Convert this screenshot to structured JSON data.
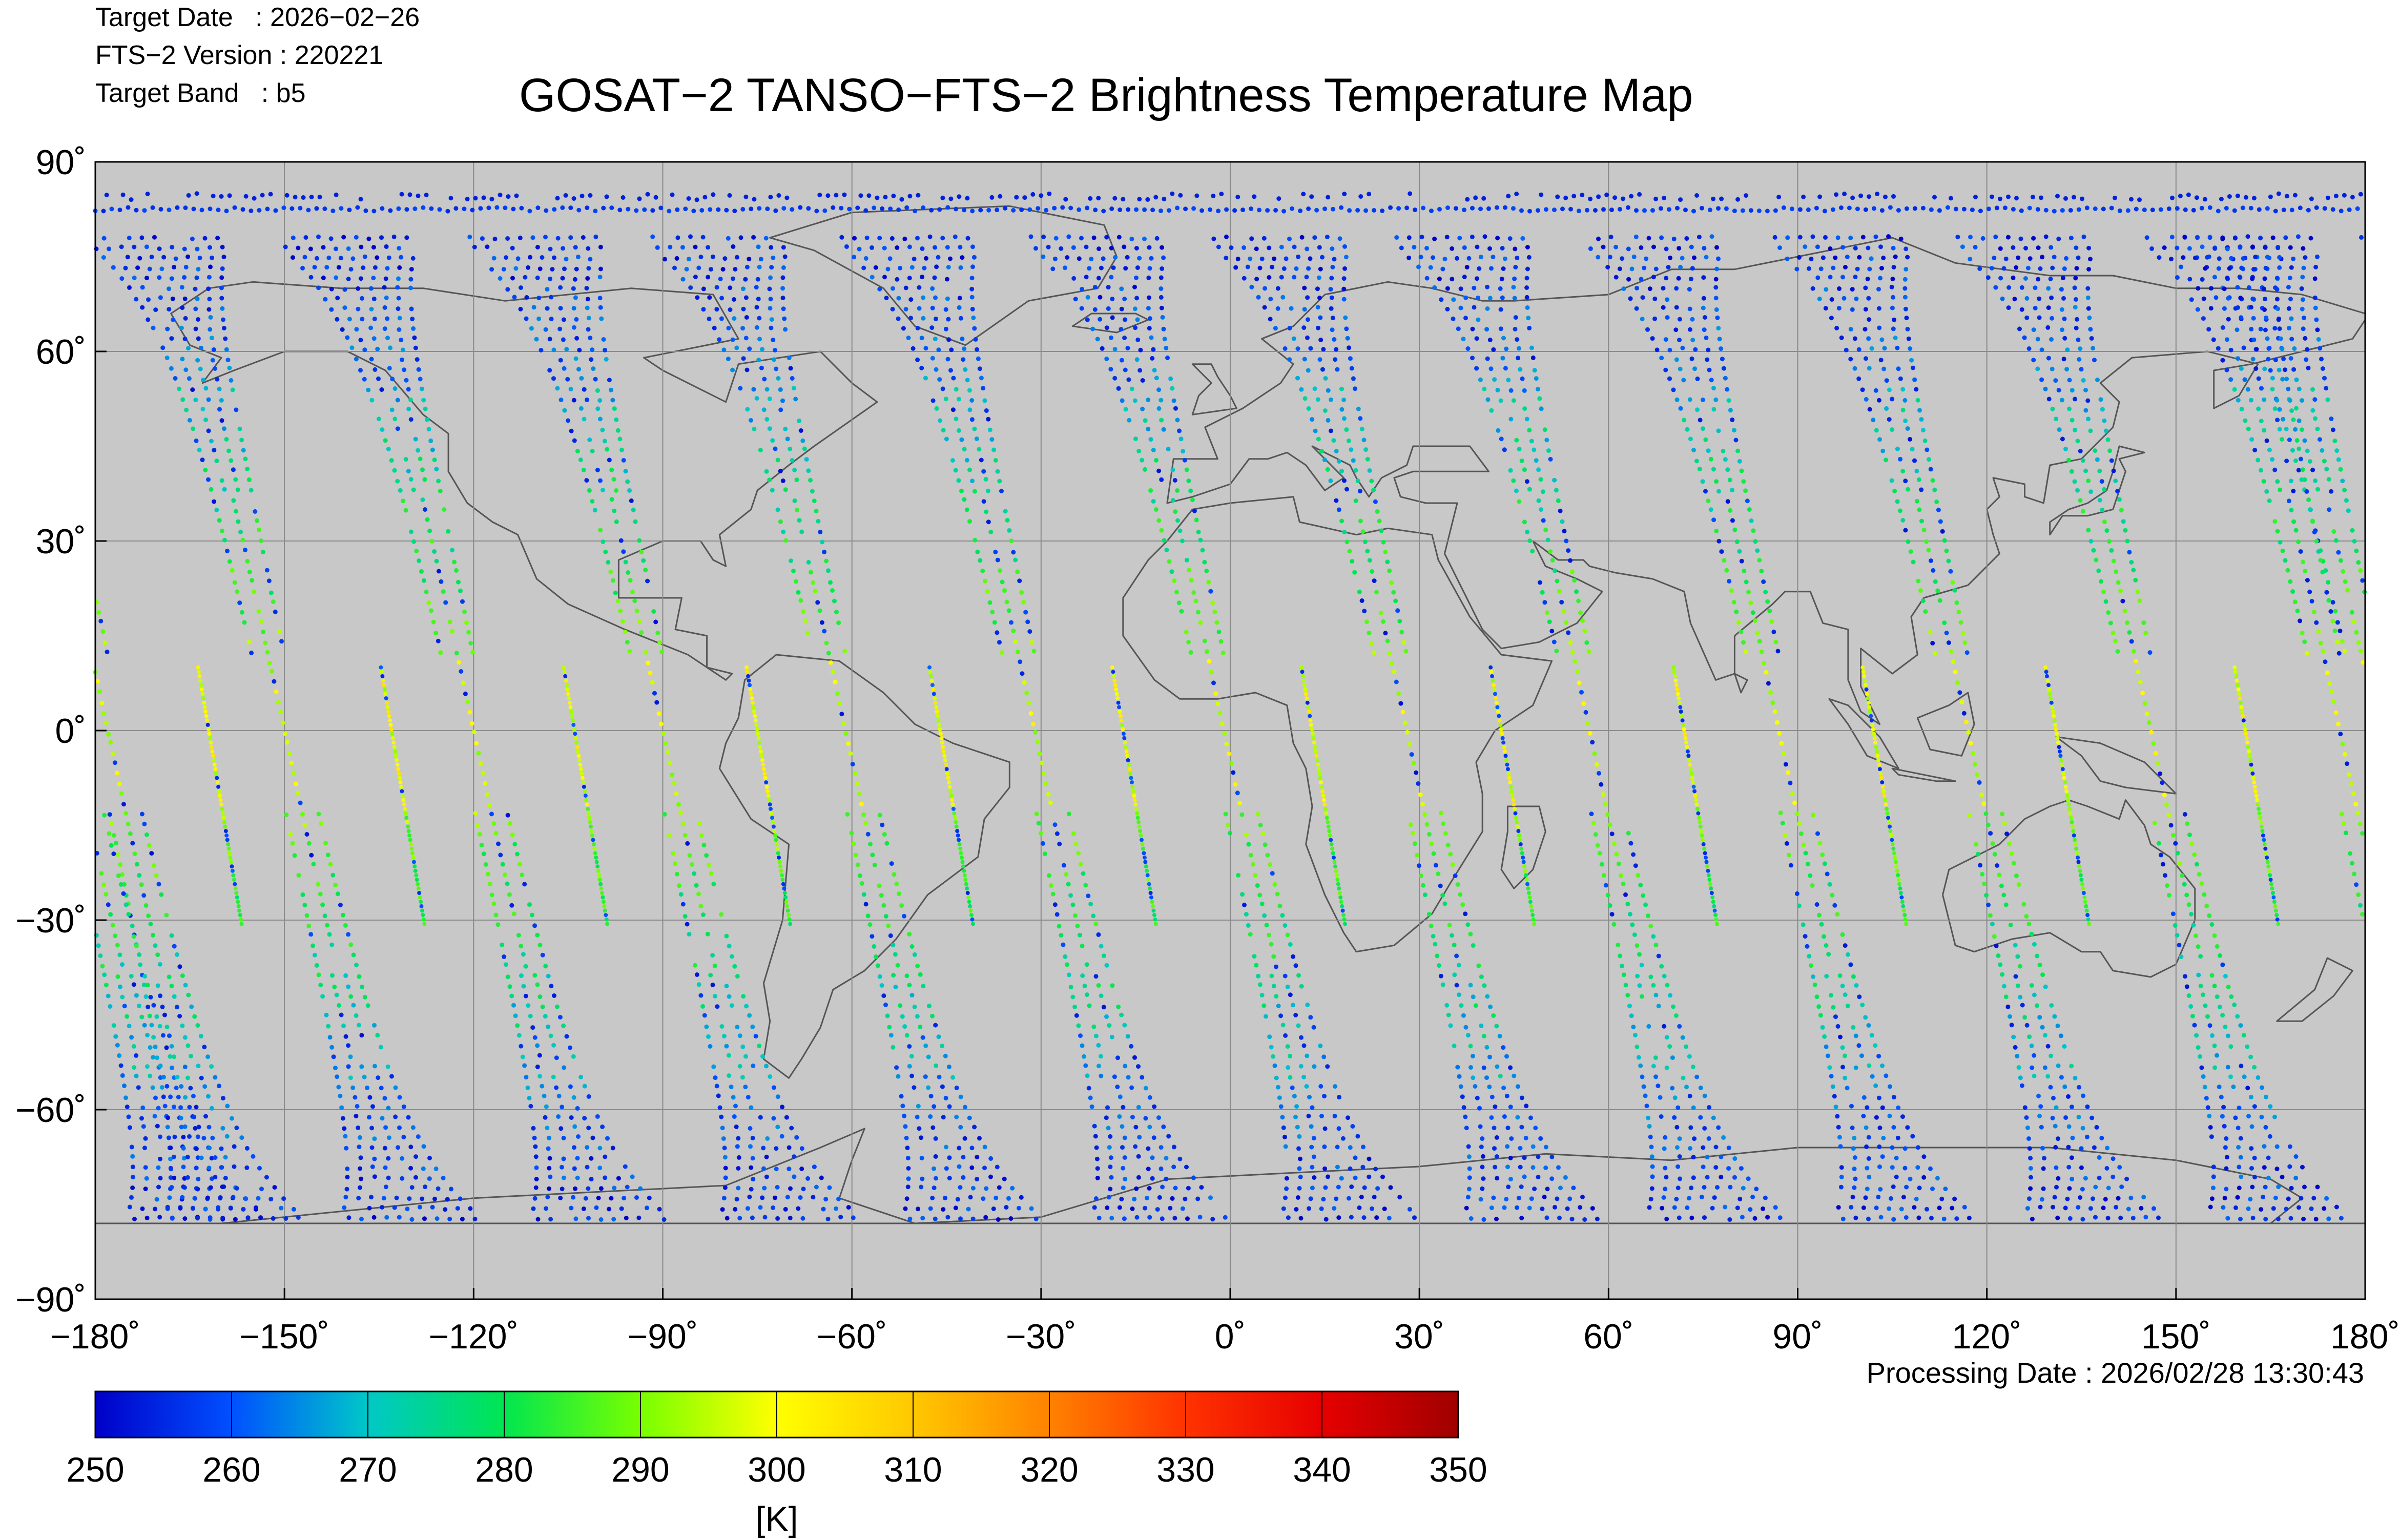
{
  "header": {
    "target_date": "Target Date   : 2026−02−26",
    "version": "FTS−2 Version : 220221",
    "target_band": "Target Band   : b5"
  },
  "title": "GOSAT−2 TANSO−FTS−2 Brightness Temperature Map",
  "processing_date": "Processing Date : 2026/02/28 13:30:43",
  "map": {
    "projection": "equirectangular",
    "lon_range": [
      -180,
      180
    ],
    "lat_range": [
      -90,
      90
    ],
    "background_color": "#c8c8c8",
    "grid_color": "#8a8a8a",
    "lon_ticks": [
      {
        "value": -180,
        "label": "−180˚"
      },
      {
        "value": -150,
        "label": "−150˚"
      },
      {
        "value": -120,
        "label": "−120˚"
      },
      {
        "value": -90,
        "label": "−90˚"
      },
      {
        "value": -60,
        "label": "−60˚"
      },
      {
        "value": -30,
        "label": "−30˚"
      },
      {
        "value": 0,
        "label": "0˚"
      },
      {
        "value": 30,
        "label": "30˚"
      },
      {
        "value": 60,
        "label": "60˚"
      },
      {
        "value": 90,
        "label": "90˚"
      },
      {
        "value": 120,
        "label": "120˚"
      },
      {
        "value": 150,
        "label": "150˚"
      },
      {
        "value": 180,
        "label": "180˚"
      }
    ],
    "lat_ticks": [
      {
        "value": 90,
        "label": "90˚"
      },
      {
        "value": 60,
        "label": "60˚"
      },
      {
        "value": 30,
        "label": "30˚"
      },
      {
        "value": 0,
        "label": "0˚"
      },
      {
        "value": -30,
        "label": "−30˚"
      },
      {
        "value": -60,
        "label": "−60˚"
      },
      {
        "value": -90,
        "label": "−90˚"
      }
    ],
    "northern_polar_track": {
      "lat": 82.5,
      "temperature_k": 255
    },
    "ascending_tracks_equator_lon": [
      -178,
      -150,
      -120,
      -90,
      -61,
      -31,
      -1,
      28,
      57,
      87,
      117,
      146,
      176
    ],
    "descending_tracks_equator_lon": [
      -162,
      -133,
      -104,
      -75,
      -46,
      -17,
      13,
      43,
      72,
      102,
      131,
      161
    ],
    "land_outline_color": "#555555"
  },
  "colorbar": {
    "min": 250,
    "max": 350,
    "ticks": [
      "250",
      "260",
      "270",
      "280",
      "290",
      "300",
      "310",
      "320",
      "330",
      "340",
      "350"
    ],
    "unit": "[K]",
    "colors": [
      "#0000c8",
      "#0050ff",
      "#00c8c8",
      "#00e650",
      "#78ff00",
      "#ffff00",
      "#ffc800",
      "#ff8200",
      "#ff3200",
      "#e60000",
      "#a00000"
    ]
  }
}
